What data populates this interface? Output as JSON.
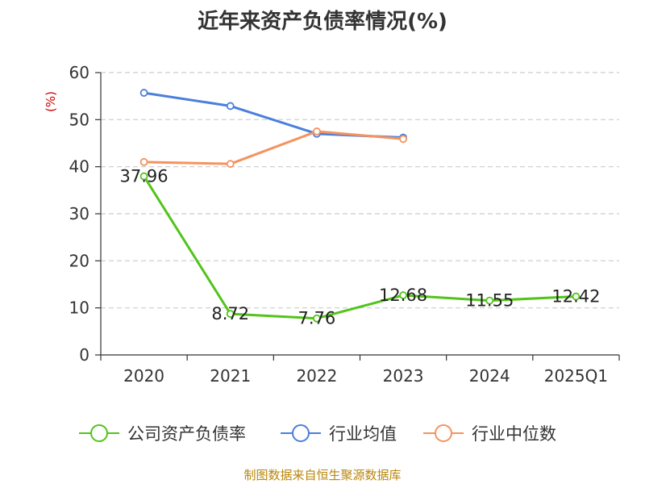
{
  "chart_data": {
    "type": "line",
    "title": "近年来资产负债率情况(%)",
    "ylabel": "(%)",
    "categories": [
      "2020",
      "2021",
      "2022",
      "2023",
      "2024",
      "2025Q1"
    ],
    "ylim": [
      0,
      60
    ],
    "yticks": [
      0,
      10,
      20,
      30,
      40,
      50,
      60
    ],
    "grid": true,
    "legend_position": "bottom",
    "series": [
      {
        "name": "公司资产负债率",
        "color": "#52c41a",
        "values": [
          37.96,
          8.72,
          7.76,
          12.68,
          11.55,
          12.42
        ],
        "labels": [
          "37.96",
          "8.72",
          "7.76",
          "12.68",
          "11.55",
          "12.42"
        ]
      },
      {
        "name": "行业均值",
        "color": "#4a7fdc",
        "values": [
          55.7,
          52.9,
          47.0,
          46.2,
          null,
          null
        ]
      },
      {
        "name": "行业中位数",
        "color": "#f4935f",
        "values": [
          41.0,
          40.6,
          47.5,
          45.9,
          null,
          null
        ]
      }
    ]
  },
  "footer": {
    "source": "制图数据来自恒生聚源数据库"
  }
}
